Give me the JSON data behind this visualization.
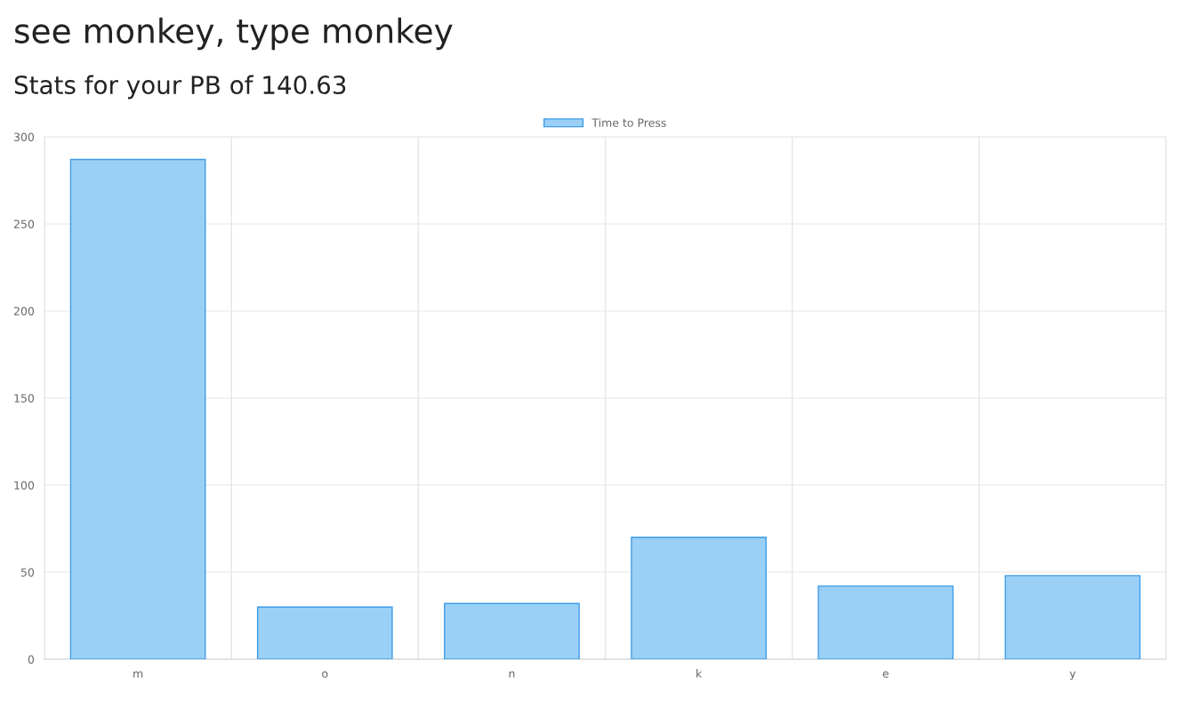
{
  "chart_data": {
    "type": "bar",
    "title": "see monkey, type monkey",
    "subtitle": "Stats for your PB of 140.63",
    "categories": [
      "m",
      "o",
      "n",
      "k",
      "e",
      "y"
    ],
    "series": [
      {
        "name": "Time to Press",
        "color": "#9ad0f5",
        "values": [
          287,
          30,
          32,
          70,
          42,
          48
        ]
      }
    ],
    "ylim": [
      0,
      300
    ],
    "yticks": [
      0,
      50,
      100,
      150,
      200,
      250,
      300
    ],
    "grid": true,
    "legend": "top"
  }
}
